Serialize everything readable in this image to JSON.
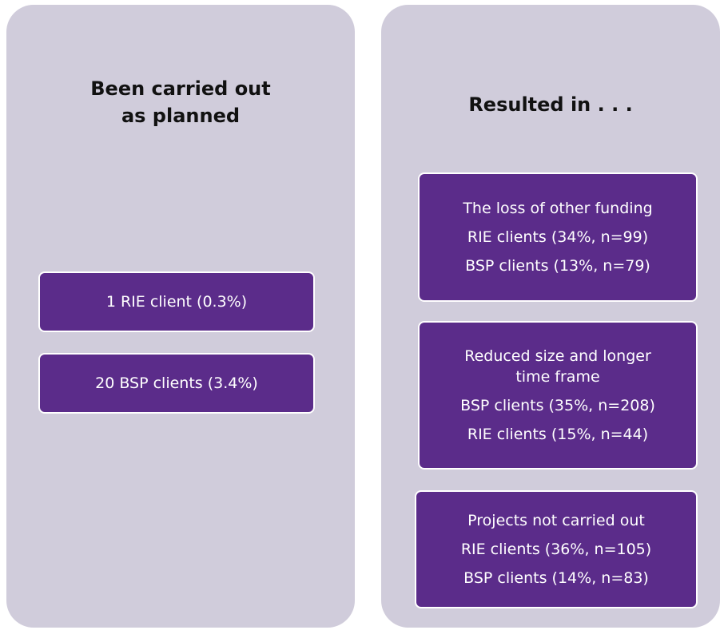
{
  "panels": [
    {
      "title": [
        "Been carried out",
        "as planned"
      ],
      "boxes": [
        {
          "lines": [
            "1 RIE client (0.3%)"
          ]
        },
        {
          "lines": [
            "20 BSP clients (3.4%)"
          ]
        }
      ]
    },
    {
      "title": [
        "Resulted in . . ."
      ],
      "boxes": [
        {
          "lines": [
            "The loss of other funding",
            "RIE clients (34%, n=99)",
            "BSP clients (13%, n=79)"
          ]
        },
        {
          "lines": [
            "Reduced size and longer",
            "time frame",
            "BSP clients (35%, n=208)",
            "RIE clients (15%, n=44)"
          ]
        },
        {
          "lines": [
            "Projects not carried out",
            "RIE clients (36%, n=105)",
            "BSP clients (14%, n=83)"
          ]
        }
      ]
    }
  ]
}
